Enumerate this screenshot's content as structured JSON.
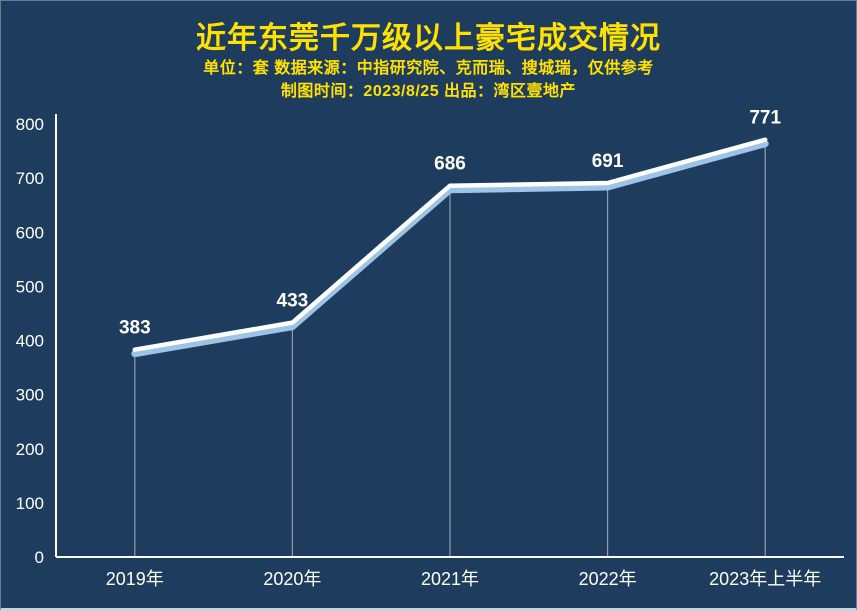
{
  "header": {
    "title": "近年东莞千万级以上豪宅成交情况",
    "subtitle_line1": "单位：套  数据来源：中指研究院、克而瑞、搜城瑞，仅供参考",
    "subtitle_line2": "制图时间：2023/8/25  出品：湾区壹地产"
  },
  "chart_data": {
    "type": "line",
    "title": "近年东莞千万级以上豪宅成交情况",
    "unit_note": "单位：套",
    "categories": [
      "2019年",
      "2020年",
      "2021年",
      "2022年",
      "2023年上半年"
    ],
    "values": [
      383,
      433,
      686,
      691,
      771
    ],
    "ylim": [
      0,
      800
    ],
    "yticks": [
      0,
      100,
      200,
      300,
      400,
      500,
      600,
      700,
      800
    ],
    "grid": false,
    "legend": false,
    "value_labels_shown": true,
    "colors": {
      "background": "#1e3c5e",
      "line": "#ffffff",
      "line_shadow": "#9dc3e6",
      "drop_line": "rgba(255,255,255,0.5)",
      "axis": "#ffffff",
      "title": "#ffe100",
      "tick_labels": "#ffffff",
      "value_labels": "#ffffff"
    }
  }
}
